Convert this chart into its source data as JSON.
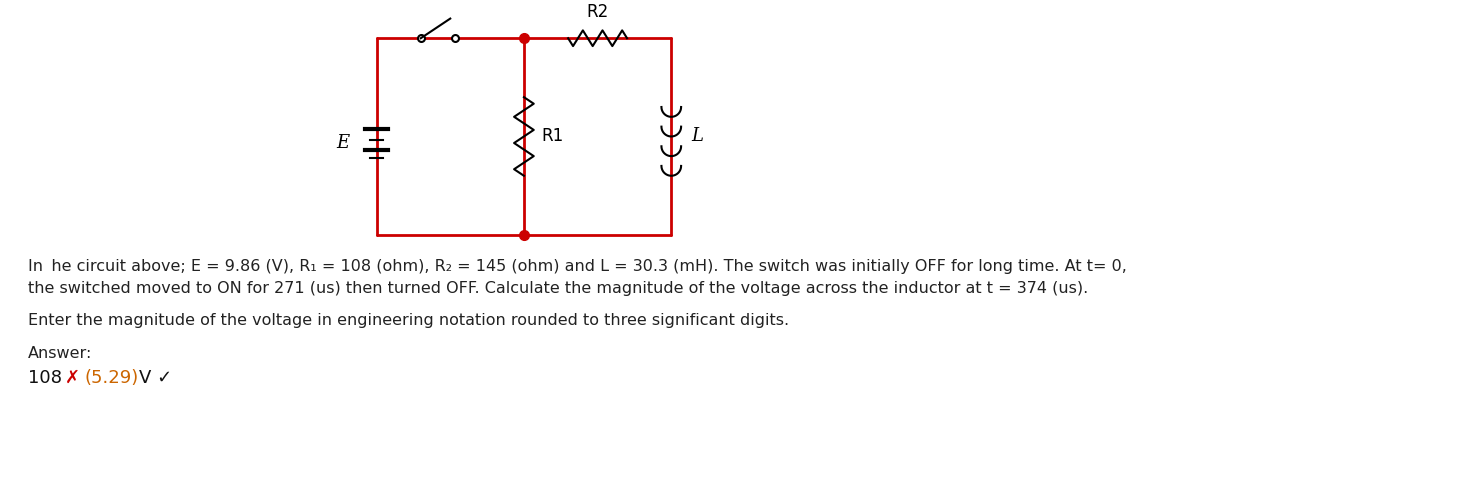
{
  "bg_color": "#ffffff",
  "circuit_color": "#cc0000",
  "black": "#000000",
  "gray": "#555555",
  "line1": "In  he circuit above; E = 9.86 (V), R₁ = 108 (ohm), R₂ = 145 (ohm) and L = 30.3 (mH). The switch was initially OFF for long time. At t= 0,",
  "line2": "the switched moved to ON for 271 (us) then turned OFF. Calculate the magnitude of the voltage across the inductor at t = 374 (us).",
  "line3": "Enter the magnitude of the voltage in engineering notation rounded to three significant digits.",
  "line4": "Answer:",
  "answer_wrong": "108",
  "answer_correct": "(5.29)",
  "answer_unit": "V",
  "label_E": "E",
  "label_R1": "R1",
  "label_R2": "R2",
  "label_L": "L"
}
